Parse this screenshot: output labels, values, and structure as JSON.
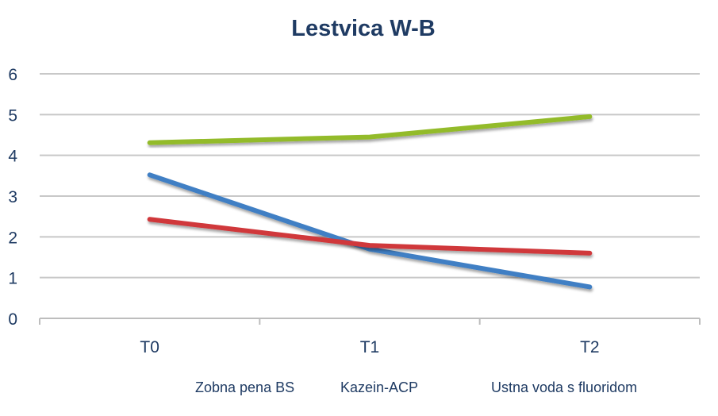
{
  "chart_data": {
    "type": "line",
    "title": "Lestvica W-B",
    "xlabel": "",
    "ylabel": "",
    "categories": [
      "T0",
      "T1",
      "T2"
    ],
    "ylim": [
      0,
      6
    ],
    "yticks": [
      "0",
      "1",
      "2",
      "3",
      "4",
      "5",
      "6"
    ],
    "grid": true,
    "legend_position": "bottom",
    "series": [
      {
        "name": "Zobna pena BS",
        "values": [
          3.52,
          1.7,
          0.77
        ],
        "color": "#3f7fc4"
      },
      {
        "name": "Kazein-ACP",
        "values": [
          2.43,
          1.79,
          1.6
        ],
        "color": "#d0373b"
      },
      {
        "name": "Ustna voda s fluoridom",
        "values": [
          4.31,
          4.45,
          4.95
        ],
        "color": "#93bb2c"
      }
    ],
    "text_color": "#1f3b63"
  }
}
